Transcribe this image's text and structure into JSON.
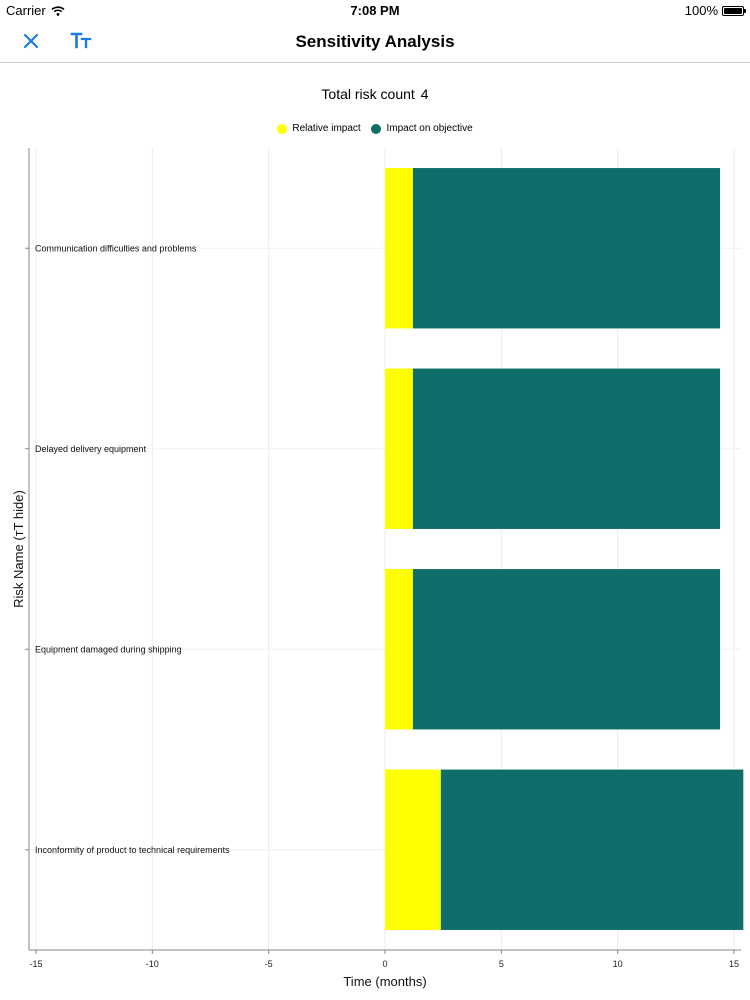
{
  "status_bar": {
    "carrier": "Carrier",
    "time": "7:08 PM",
    "battery": "100%"
  },
  "nav": {
    "title": "Sensitivity Analysis",
    "close_icon": "close-icon",
    "font_icon": "text-size-icon"
  },
  "summary": {
    "label": "Total risk count",
    "count": "4"
  },
  "colors": {
    "relative_impact": "#ffff00",
    "impact_on_objective": "#0f6e6a",
    "accent": "#1a7be0"
  },
  "chart_data": {
    "type": "bar",
    "orientation": "horizontal",
    "stacked": true,
    "categories": [
      "Communication difficulties and problems",
      "Delayed delivery equipment",
      "Equipment damaged during shipping",
      "Inconformity of product to technical requirements"
    ],
    "series": [
      {
        "name": "Relative impact",
        "color": "#ffff00",
        "values": [
          1.2,
          1.2,
          1.2,
          2.4
        ]
      },
      {
        "name": "Impact on objective",
        "color": "#0f6e6a",
        "values": [
          13.2,
          13.2,
          13.2,
          13.0
        ]
      }
    ],
    "xlabel": "Time (months)",
    "ylabel": "Risk Name (тT hide)",
    "xlim": [
      -15.3,
      15.3
    ],
    "xticks": [
      -15,
      -10,
      -5,
      0,
      5,
      10,
      15
    ],
    "grid": true,
    "legend": "top"
  }
}
